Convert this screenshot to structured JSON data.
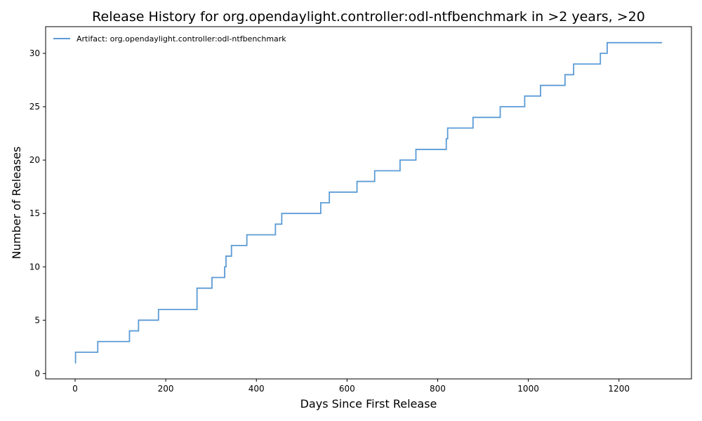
{
  "chart_data": {
    "type": "line",
    "step": "post",
    "title": "Release History for org.opendaylight.controller:odl-ntfbenchmark in >2 years, >20",
    "xlabel": "Days Since First Release",
    "ylabel": "Number of Releases",
    "xlim": [
      -65,
      1360
    ],
    "ylim": [
      -0.5,
      32.5
    ],
    "xticks": [
      0,
      200,
      400,
      600,
      800,
      1000,
      1200
    ],
    "yticks": [
      0,
      5,
      10,
      15,
      20,
      25,
      30
    ],
    "grid": false,
    "legend_position": "top-left",
    "series": [
      {
        "name": "Artifact: org.opendaylight.controller:odl-ntfbenchmark",
        "color": "#5b9bd5",
        "x": [
          0,
          1,
          50,
          120,
          140,
          184,
          269,
          302,
          330,
          333,
          345,
          379,
          442,
          456,
          542,
          561,
          622,
          661,
          717,
          752,
          819,
          822,
          878,
          938,
          992,
          1027,
          1081,
          1100,
          1159,
          1174,
          1295
        ],
        "y": [
          1,
          2,
          3,
          4,
          5,
          6,
          8,
          9,
          10,
          11,
          12,
          13,
          14,
          15,
          16,
          17,
          18,
          19,
          20,
          21,
          22,
          23,
          24,
          25,
          26,
          27,
          28,
          29,
          30,
          31,
          31
        ]
      }
    ]
  }
}
